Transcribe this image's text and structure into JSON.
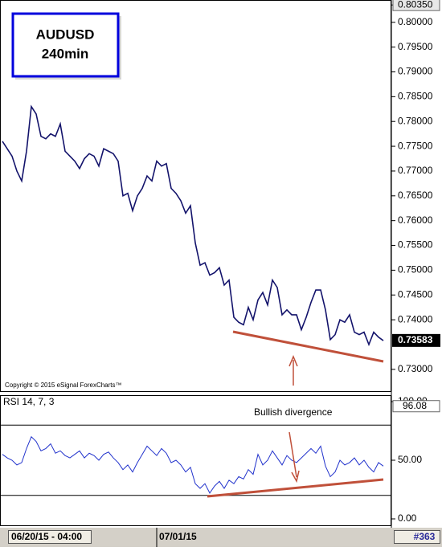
{
  "chart_data": [
    {
      "type": "line",
      "title": "AUDUSD",
      "subtitle": "240min",
      "annotation": "Copyright © 2015 eSignal ForexCharts™",
      "color": "#13136b",
      "categories": [
        "06/20/15 - 04:00",
        null,
        null,
        null,
        null,
        null,
        null,
        null,
        null,
        null,
        null,
        null,
        null,
        null,
        null,
        null,
        null,
        null,
        null,
        null,
        null,
        null,
        null,
        null,
        null,
        null,
        null,
        null,
        null,
        null,
        null,
        null,
        null,
        "07/01/15",
        null,
        null,
        null,
        null,
        null,
        null,
        null,
        null,
        null,
        null,
        null,
        null,
        null,
        null,
        null,
        null,
        null,
        null,
        null,
        null,
        null,
        null,
        null,
        null,
        null,
        null,
        null,
        null,
        null,
        null,
        null,
        null,
        null,
        null,
        null,
        null,
        null,
        null,
        null,
        null,
        null,
        null,
        null,
        null,
        null,
        null
      ],
      "values": [
        0.776,
        0.7745,
        0.773,
        0.77,
        0.768,
        0.774,
        0.783,
        0.7815,
        0.777,
        0.7765,
        0.7775,
        0.777,
        0.7795,
        0.774,
        0.773,
        0.772,
        0.7705,
        0.7725,
        0.7735,
        0.773,
        0.771,
        0.7745,
        0.774,
        0.7735,
        0.772,
        0.765,
        0.7655,
        0.762,
        0.765,
        0.7665,
        0.769,
        0.768,
        0.772,
        0.771,
        0.7715,
        0.7665,
        0.7655,
        0.764,
        0.7615,
        0.763,
        0.7555,
        0.751,
        0.7515,
        0.749,
        0.7495,
        0.7505,
        0.747,
        0.748,
        0.7405,
        0.7395,
        0.739,
        0.7425,
        0.74,
        0.744,
        0.7455,
        0.743,
        0.748,
        0.7465,
        0.741,
        0.742,
        0.741,
        0.741,
        0.738,
        0.7405,
        0.7435,
        0.746,
        0.746,
        0.742,
        0.736,
        0.737,
        0.74,
        0.7395,
        0.741,
        0.7375,
        0.737,
        0.7375,
        0.735,
        0.7375,
        0.7365,
        0.7358
      ],
      "last_price": 0.73583,
      "ylim": [
        0.7256,
        0.8045
      ],
      "yticks": [
        {
          "value": 0.8035,
          "label": "0.80350"
        },
        {
          "value": 0.8,
          "label": "0.80000"
        },
        {
          "value": 0.795,
          "label": "0.79500"
        },
        {
          "value": 0.79,
          "label": "0.79000"
        },
        {
          "value": 0.785,
          "label": "0.78500"
        },
        {
          "value": 0.78,
          "label": "0.78000"
        },
        {
          "value": 0.775,
          "label": "0.77500"
        },
        {
          "value": 0.77,
          "label": "0.77000"
        },
        {
          "value": 0.765,
          "label": "0.76500"
        },
        {
          "value": 0.76,
          "label": "0.76000"
        },
        {
          "value": 0.755,
          "label": "0.75500"
        },
        {
          "value": 0.75,
          "label": "0.75000"
        },
        {
          "value": 0.745,
          "label": "0.74500"
        },
        {
          "value": 0.74,
          "label": "0.74000"
        },
        {
          "value": 0.73,
          "label": "0.73000"
        }
      ]
    },
    {
      "type": "line",
      "title": "RSI 14, 7, 3",
      "annotation": "Bullish divergence",
      "color": "#2233cc",
      "values": [
        55,
        52,
        50,
        46,
        48,
        60,
        70,
        66,
        58,
        60,
        64,
        56,
        58,
        54,
        52,
        55,
        58,
        52,
        56,
        54,
        50,
        55,
        57,
        52,
        48,
        42,
        46,
        40,
        48,
        55,
        62,
        58,
        54,
        60,
        56,
        48,
        50,
        46,
        40,
        44,
        30,
        26,
        30,
        22,
        28,
        32,
        26,
        33,
        30,
        36,
        34,
        42,
        38,
        55,
        46,
        50,
        58,
        52,
        46,
        54,
        50,
        48,
        52,
        56,
        60,
        56,
        62,
        45,
        36,
        40,
        50,
        46,
        48,
        52,
        46,
        50,
        44,
        40,
        48,
        45
      ],
      "readout": 96.08,
      "levels": [
        80,
        20
      ],
      "ylim": [
        0,
        100
      ],
      "yticks": [
        {
          "value": 100,
          "label": "100.00"
        },
        {
          "value": 50,
          "label": "50.00"
        },
        {
          "value": 0,
          "label": "0.00"
        }
      ]
    }
  ],
  "bar_label": "#363"
}
